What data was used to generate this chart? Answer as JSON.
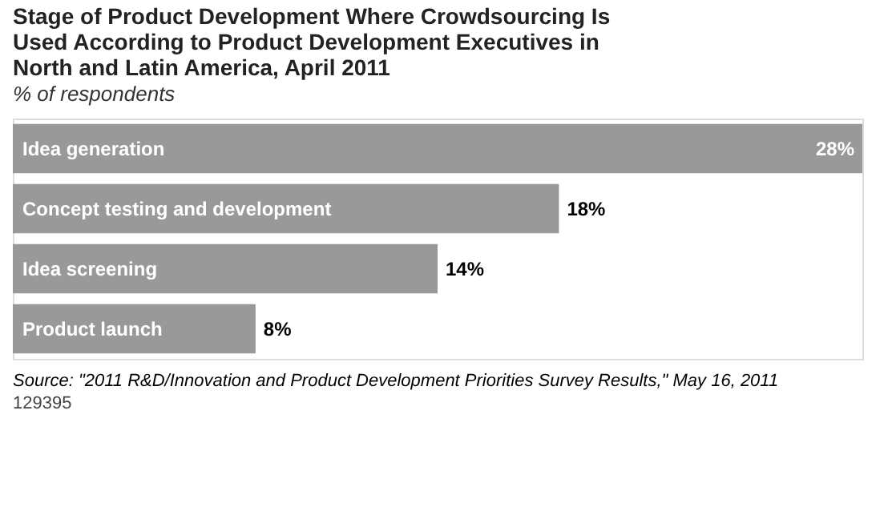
{
  "chart_data": {
    "type": "bar",
    "orientation": "horizontal",
    "title": "Stage of Product Development Where Crowdsourcing Is Used According to Product Development Executives in North and Latin America, April 2011",
    "subtitle": "% of respondents",
    "categories": [
      "Idea generation",
      "Concept testing and development",
      "Idea screening",
      "Product launch"
    ],
    "values": [
      28,
      18,
      14,
      8
    ],
    "value_labels": [
      "28%",
      "18%",
      "14%",
      "8%"
    ],
    "color": "#999999",
    "annotations": [
      "Source: \"2011 R&D/Innovation and Product Development Priorities Survey Results,\" May 16, 2011",
      "129395"
    ]
  }
}
